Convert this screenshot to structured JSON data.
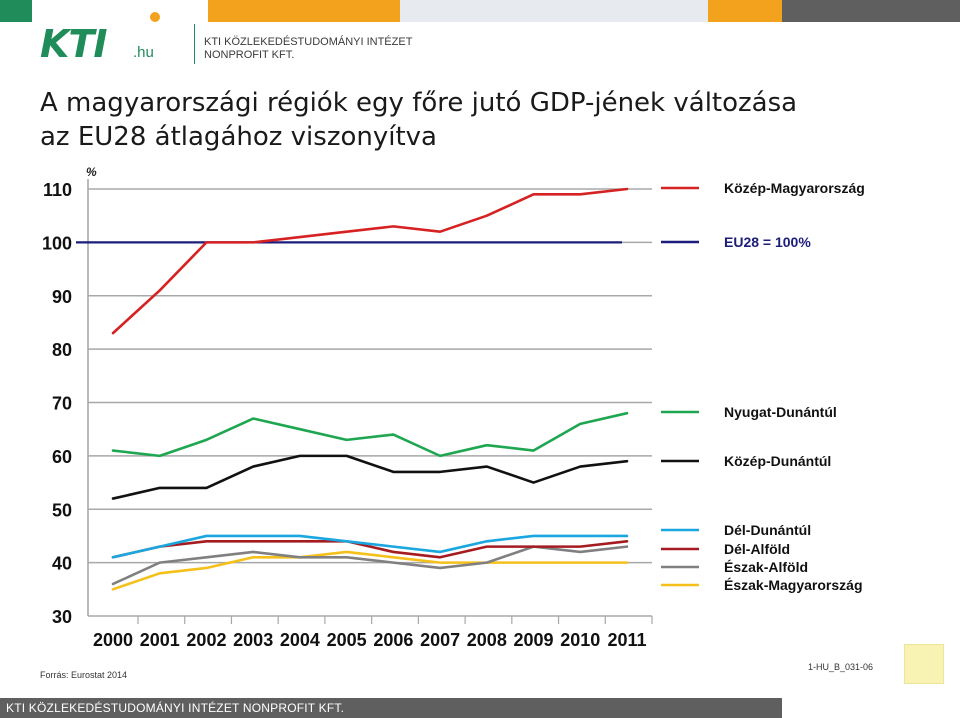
{
  "header": {
    "logo_text": "KTI",
    "logo_suffix": ".hu",
    "org_line1": "KTI KÖZLEKEDÉSTUDOMÁNYI INTÉZET",
    "org_line2": "NONPROFIT KFT.",
    "brand_colors": {
      "green": "#1f8c5a",
      "orange": "#f2a21c",
      "gray": "#5f5f5f"
    }
  },
  "title_line1": "A magyarországi régiók egy főre jutó GDP-jének változása",
  "title_line2": "az EU28 átlagához viszonyítva",
  "chart_data": {
    "type": "line",
    "title": "A magyarországi régiók egy főre jutó GDP-jének változása az EU28 átlagához viszonyítva",
    "ylabel": "%",
    "xlabel": "",
    "x": [
      "2000",
      "2001",
      "2002",
      "2003",
      "2004",
      "2005",
      "2006",
      "2007",
      "2008",
      "2009",
      "2010",
      "2011"
    ],
    "ylim": [
      30,
      110
    ],
    "yticks": [
      110,
      100,
      90,
      80,
      70,
      60,
      50,
      40,
      30
    ],
    "grid": true,
    "legend_position": "right",
    "series": [
      {
        "name": "Közép-Magyarország",
        "color": "#d62222",
        "values": [
          83,
          91,
          100,
          100,
          101,
          102,
          103,
          102,
          105,
          109,
          109,
          110
        ]
      },
      {
        "name": "EU28 = 100%",
        "color": "#1c1c7a",
        "values": [
          100,
          100,
          100,
          100,
          100,
          100,
          100,
          100,
          100,
          100,
          100,
          100
        ]
      },
      {
        "name": "Nyugat-Dunántúl",
        "color": "#1ea650",
        "values": [
          61,
          60,
          63,
          67,
          65,
          63,
          64,
          60,
          62,
          61,
          66,
          68
        ]
      },
      {
        "name": "Közép-Dunántúl",
        "color": "#111111",
        "values": [
          52,
          54,
          54,
          58,
          60,
          60,
          57,
          57,
          58,
          55,
          58,
          59
        ]
      },
      {
        "name": "Dél-Dunántúl",
        "color": "#1aa7e0",
        "values": [
          41,
          43,
          45,
          45,
          45,
          44,
          43,
          42,
          44,
          45,
          45,
          45
        ]
      },
      {
        "name": "Dél-Alföld",
        "color": "#a51c20",
        "values": [
          41,
          43,
          44,
          44,
          44,
          44,
          42,
          41,
          43,
          43,
          43,
          44
        ]
      },
      {
        "name": "Észak-Alföld",
        "color": "#808080",
        "values": [
          36,
          40,
          41,
          42,
          41,
          41,
          40,
          39,
          40,
          43,
          42,
          43
        ]
      },
      {
        "name": "Észak-Magyarország",
        "color": "#f5c01a",
        "values": [
          35,
          38,
          39,
          41,
          41,
          42,
          41,
          40,
          40,
          40,
          40,
          40
        ]
      }
    ]
  },
  "source": "Forrás: Eurostat 2014",
  "code": "1-HU_B_031-06",
  "footer": "KTI KÖZLEKEDÉSTUDOMÁNYI INTÉZET NONPROFIT KFT."
}
